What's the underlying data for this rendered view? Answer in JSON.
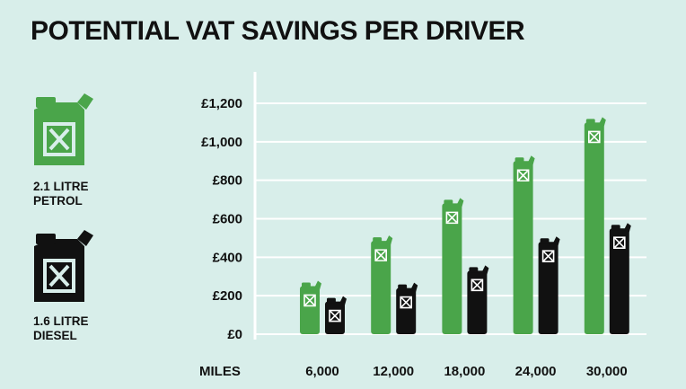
{
  "title": "POTENTIAL VAT SAVINGS PER DRIVER",
  "legend": [
    {
      "line1": "2.1 LITRE",
      "line2": "PETROL",
      "color": "#4aa54a",
      "icon": "jerry-can-icon"
    },
    {
      "line1": "1.6 LITRE",
      "line2": "DIESEL",
      "color": "#111111",
      "icon": "jerry-can-icon"
    }
  ],
  "chart_data": {
    "type": "bar",
    "title": "POTENTIAL VAT SAVINGS PER DRIVER",
    "xlabel": "MILES",
    "ylabel": "",
    "categories": [
      "6,000",
      "12,000",
      "18,000",
      "24,000",
      "30,000"
    ],
    "series": [
      {
        "name": "2.1 LITRE PETROL",
        "color": "#4aa54a",
        "values": [
          250,
          485,
          680,
          900,
          1100
        ]
      },
      {
        "name": "1.6 LITRE DIESEL",
        "color": "#111111",
        "values": [
          170,
          240,
          330,
          480,
          550
        ]
      }
    ],
    "ylim": [
      0,
      1200
    ],
    "yticks": [
      0,
      200,
      400,
      600,
      800,
      1000,
      1200
    ],
    "ytick_labels": [
      "£0",
      "£200",
      "£400",
      "£600",
      "£800",
      "£1,000",
      "£1,200"
    ],
    "grid": true,
    "legend_position": "left"
  }
}
